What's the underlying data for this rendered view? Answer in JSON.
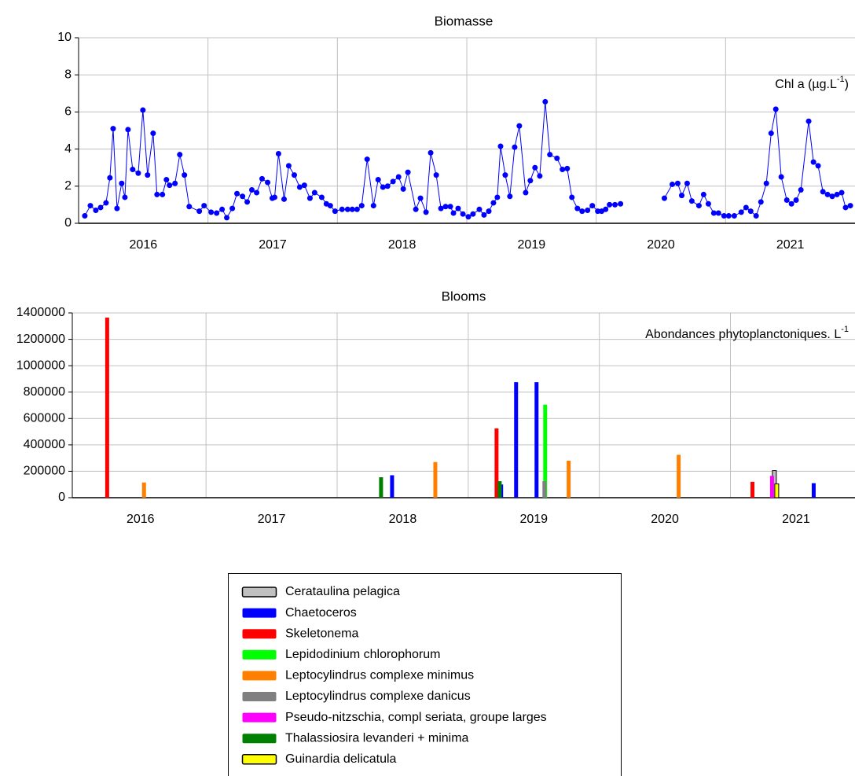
{
  "chart_data": [
    {
      "type": "line",
      "title": "Biomasse",
      "annotation": {
        "text": "Chl a (µg.L",
        "sup": "-1",
        "end": ")"
      },
      "color": "#0000ff",
      "grid": true,
      "xlim": [
        2016,
        2022
      ],
      "ylim": [
        0,
        10
      ],
      "yticks": [
        0,
        2,
        4,
        6,
        8,
        10
      ],
      "xticks": [
        {
          "value": 2016.5,
          "label": "2016"
        },
        {
          "value": 2017.5,
          "label": "2017"
        },
        {
          "value": 2018.5,
          "label": "2018"
        },
        {
          "value": 2019.5,
          "label": "2019"
        },
        {
          "value": 2020.5,
          "label": "2020"
        },
        {
          "value": 2021.5,
          "label": "2021"
        }
      ],
      "xgrid": [
        2017,
        2018,
        2019,
        2020,
        2021
      ],
      "x": [
        2016.048,
        2016.091,
        2016.133,
        2016.17,
        2016.212,
        2016.242,
        2016.267,
        2016.297,
        2016.333,
        2016.358,
        2016.382,
        2016.418,
        2016.461,
        2016.497,
        2016.533,
        2016.576,
        2016.606,
        2016.648,
        2016.679,
        2016.703,
        2016.745,
        2016.782,
        2016.818,
        2016.855,
        2016.933,
        2016.97,
        2017.024,
        2017.067,
        2017.109,
        2017.145,
        2017.188,
        2017.224,
        2017.267,
        2017.303,
        2017.339,
        2017.376,
        2017.418,
        2017.461,
        2017.497,
        2017.515,
        2017.545,
        2017.588,
        2017.624,
        2017.667,
        2017.709,
        2017.745,
        2017.788,
        2017.824,
        2017.879,
        2017.915,
        2017.945,
        2017.982,
        2018.036,
        2018.079,
        2018.115,
        2018.152,
        2018.188,
        2018.23,
        2018.279,
        2018.315,
        2018.352,
        2018.388,
        2018.43,
        2018.473,
        2018.509,
        2018.545,
        2018.606,
        2018.642,
        2018.685,
        2018.721,
        2018.764,
        2018.8,
        2018.836,
        2018.873,
        2018.897,
        2018.933,
        2018.97,
        2019.012,
        2019.048,
        2019.097,
        2019.133,
        2019.17,
        2019.206,
        2019.236,
        2019.261,
        2019.297,
        2019.333,
        2019.37,
        2019.406,
        2019.455,
        2019.491,
        2019.527,
        2019.564,
        2019.606,
        2019.642,
        2019.697,
        2019.739,
        2019.776,
        2019.812,
        2019.855,
        2019.891,
        2019.933,
        2019.97,
        2020.012,
        2020.042,
        2020.073,
        2020.103,
        2020.145,
        2020.188,
        2020.364,
        2020.527,
        2020.588,
        2020.63,
        2020.661,
        2020.703,
        2020.739,
        2020.794,
        2020.83,
        2020.867,
        2020.909,
        2020.945,
        2020.988,
        2021.024,
        2021.067,
        2021.121,
        2021.158,
        2021.194,
        2021.236,
        2021.273,
        2021.315,
        2021.352,
        2021.388,
        2021.43,
        2021.473,
        2021.509,
        2021.545,
        2021.582,
        2021.642,
        2021.679,
        2021.715,
        2021.752,
        2021.788,
        2021.824,
        2021.861,
        2021.897,
        2021.927,
        2021.964
      ],
      "values": [
        0.4,
        0.95,
        0.7,
        0.85,
        1.1,
        2.45,
        5.1,
        0.8,
        2.15,
        1.4,
        5.05,
        2.9,
        2.7,
        6.1,
        2.6,
        4.85,
        1.55,
        1.55,
        2.35,
        2.05,
        2.15,
        3.7,
        2.6,
        0.9,
        0.65,
        0.95,
        0.6,
        0.55,
        0.75,
        0.3,
        0.8,
        1.6,
        1.45,
        1.15,
        1.8,
        1.65,
        2.4,
        2.2,
        1.35,
        1.4,
        3.75,
        1.3,
        3.1,
        2.6,
        1.95,
        2.05,
        1.35,
        1.65,
        1.4,
        1.05,
        0.95,
        0.65,
        0.75,
        0.75,
        0.75,
        0.75,
        0.95,
        3.45,
        0.95,
        2.35,
        1.95,
        2.0,
        2.25,
        2.5,
        1.85,
        2.75,
        0.75,
        1.35,
        0.6,
        3.8,
        2.6,
        0.8,
        0.9,
        0.9,
        0.55,
        0.8,
        0.5,
        0.35,
        0.5,
        0.75,
        0.45,
        0.65,
        1.1,
        1.4,
        4.15,
        2.6,
        1.45,
        4.1,
        5.25,
        1.65,
        2.3,
        3.0,
        2.55,
        6.55,
        3.7,
        3.5,
        2.9,
        2.95,
        1.4,
        0.8,
        0.65,
        0.7,
        0.95,
        0.65,
        0.65,
        0.75,
        1.0,
        1.0,
        1.05,
        null,
        1.35,
        2.1,
        2.15,
        1.5,
        2.15,
        1.2,
        0.95,
        1.55,
        1.05,
        0.55,
        0.55,
        0.4,
        0.4,
        0.4,
        0.6,
        0.85,
        0.65,
        0.4,
        1.15,
        2.15,
        4.85,
        6.15,
        2.5,
        1.25,
        1.05,
        1.25,
        1.8,
        5.5,
        3.3,
        3.1,
        1.7,
        1.55,
        1.45,
        1.55,
        1.65,
        0.85,
        0.95
      ]
    },
    {
      "type": "bar",
      "title": "Blooms",
      "annotation": {
        "text": "Abondances phytoplanctoniques. L",
        "sup": "-1"
      },
      "grid": true,
      "xlim": [
        2015.98,
        2021.95
      ],
      "ylim": [
        0,
        1400000
      ],
      "yticks": [
        0,
        200000,
        400000,
        600000,
        800000,
        1000000,
        1200000,
        1400000
      ],
      "xticks": [
        {
          "value": 2016.5,
          "label": "2016"
        },
        {
          "value": 2017.5,
          "label": "2017"
        },
        {
          "value": 2018.5,
          "label": "2018"
        },
        {
          "value": 2019.5,
          "label": "2019"
        },
        {
          "value": 2020.5,
          "label": "2020"
        },
        {
          "value": 2021.5,
          "label": "2021"
        }
      ],
      "xgrid": [
        2017,
        2018,
        2019,
        2020,
        2021
      ],
      "series": [
        {
          "name": "Cerataulina pelagica",
          "color": "#c0c0c0",
          "edgecolor": "#000000",
          "x": [
            2021.335
          ],
          "values": [
            205000
          ]
        },
        {
          "name": "Chaetoceros",
          "color": "#0000ff",
          "x": [
            2018.419,
            2019.251,
            2019.365,
            2019.521,
            2021.635
          ],
          "values": [
            170000,
            100000,
            875000,
            875000,
            110000
          ]
        },
        {
          "name": "Skeletonema",
          "color": "#ff0000",
          "x": [
            2016.246,
            2019.216,
            2021.168
          ],
          "values": [
            1365000,
            525000,
            120000
          ]
        },
        {
          "name": "Lepidodinium chlorophorum",
          "color": "#00ff00",
          "x": [
            2019.587
          ],
          "values": [
            705000
          ]
        },
        {
          "name": "Leptocylindrus complexe minimus",
          "color": "#ff8000",
          "x": [
            2016.527,
            2018.749,
            2019.766,
            2020.605
          ],
          "values": [
            115000,
            270000,
            280000,
            325000
          ]
        },
        {
          "name": "Leptocylindrus complexe danicus",
          "color": "#808080",
          "x": [
            2019.581
          ],
          "values": [
            125000
          ]
        },
        {
          "name": "Pseudo-nitzschia, compl seriata, groupe larges",
          "color": "#ff00ff",
          "x": [
            2021.317
          ],
          "values": [
            165000
          ]
        },
        {
          "name": "Thalassiosira levanderi + minima",
          "color": "#008000",
          "x": [
            2018.335,
            2019.24
          ],
          "values": [
            155000,
            125000
          ]
        },
        {
          "name": "Guinardia delicatula",
          "color": "#ffff00",
          "edgecolor": "#000000",
          "x": [
            2021.353
          ],
          "values": [
            105000
          ]
        }
      ]
    }
  ]
}
